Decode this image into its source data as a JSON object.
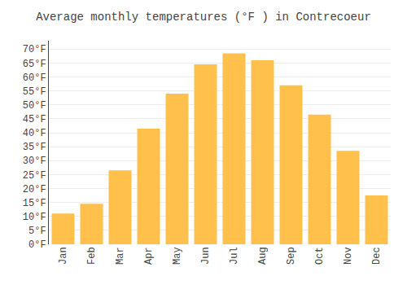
{
  "chart_data": {
    "type": "bar",
    "title": "Average monthly temperatures (°F ) in Contrecoeur",
    "categories": [
      "Jan",
      "Feb",
      "Mar",
      "Apr",
      "May",
      "Jun",
      "Jul",
      "Aug",
      "Sep",
      "Oct",
      "Nov",
      "Dec"
    ],
    "values": [
      11,
      14.5,
      26.5,
      41.5,
      54,
      64.5,
      68.5,
      66,
      57,
      46.5,
      33.5,
      17.5
    ],
    "color": "#FFC04C",
    "ylim": [
      0,
      73
    ],
    "yticks": [
      {
        "value": 0,
        "label": "0°F"
      },
      {
        "value": 5,
        "label": "5°F"
      },
      {
        "value": 10,
        "label": "10°F"
      },
      {
        "value": 15,
        "label": "15°F"
      },
      {
        "value": 20,
        "label": "20°F"
      },
      {
        "value": 25,
        "label": "25°F"
      },
      {
        "value": 30,
        "label": "30°F"
      },
      {
        "value": 35,
        "label": "35°F"
      },
      {
        "value": 40,
        "label": "40°F"
      },
      {
        "value": 45,
        "label": "45°F"
      },
      {
        "value": 50,
        "label": "50°F"
      },
      {
        "value": 55,
        "label": "55°F"
      },
      {
        "value": 60,
        "label": "60°F"
      },
      {
        "value": 65,
        "label": "65°F"
      },
      {
        "value": 70,
        "label": "70°F"
      }
    ],
    "grid": true
  }
}
